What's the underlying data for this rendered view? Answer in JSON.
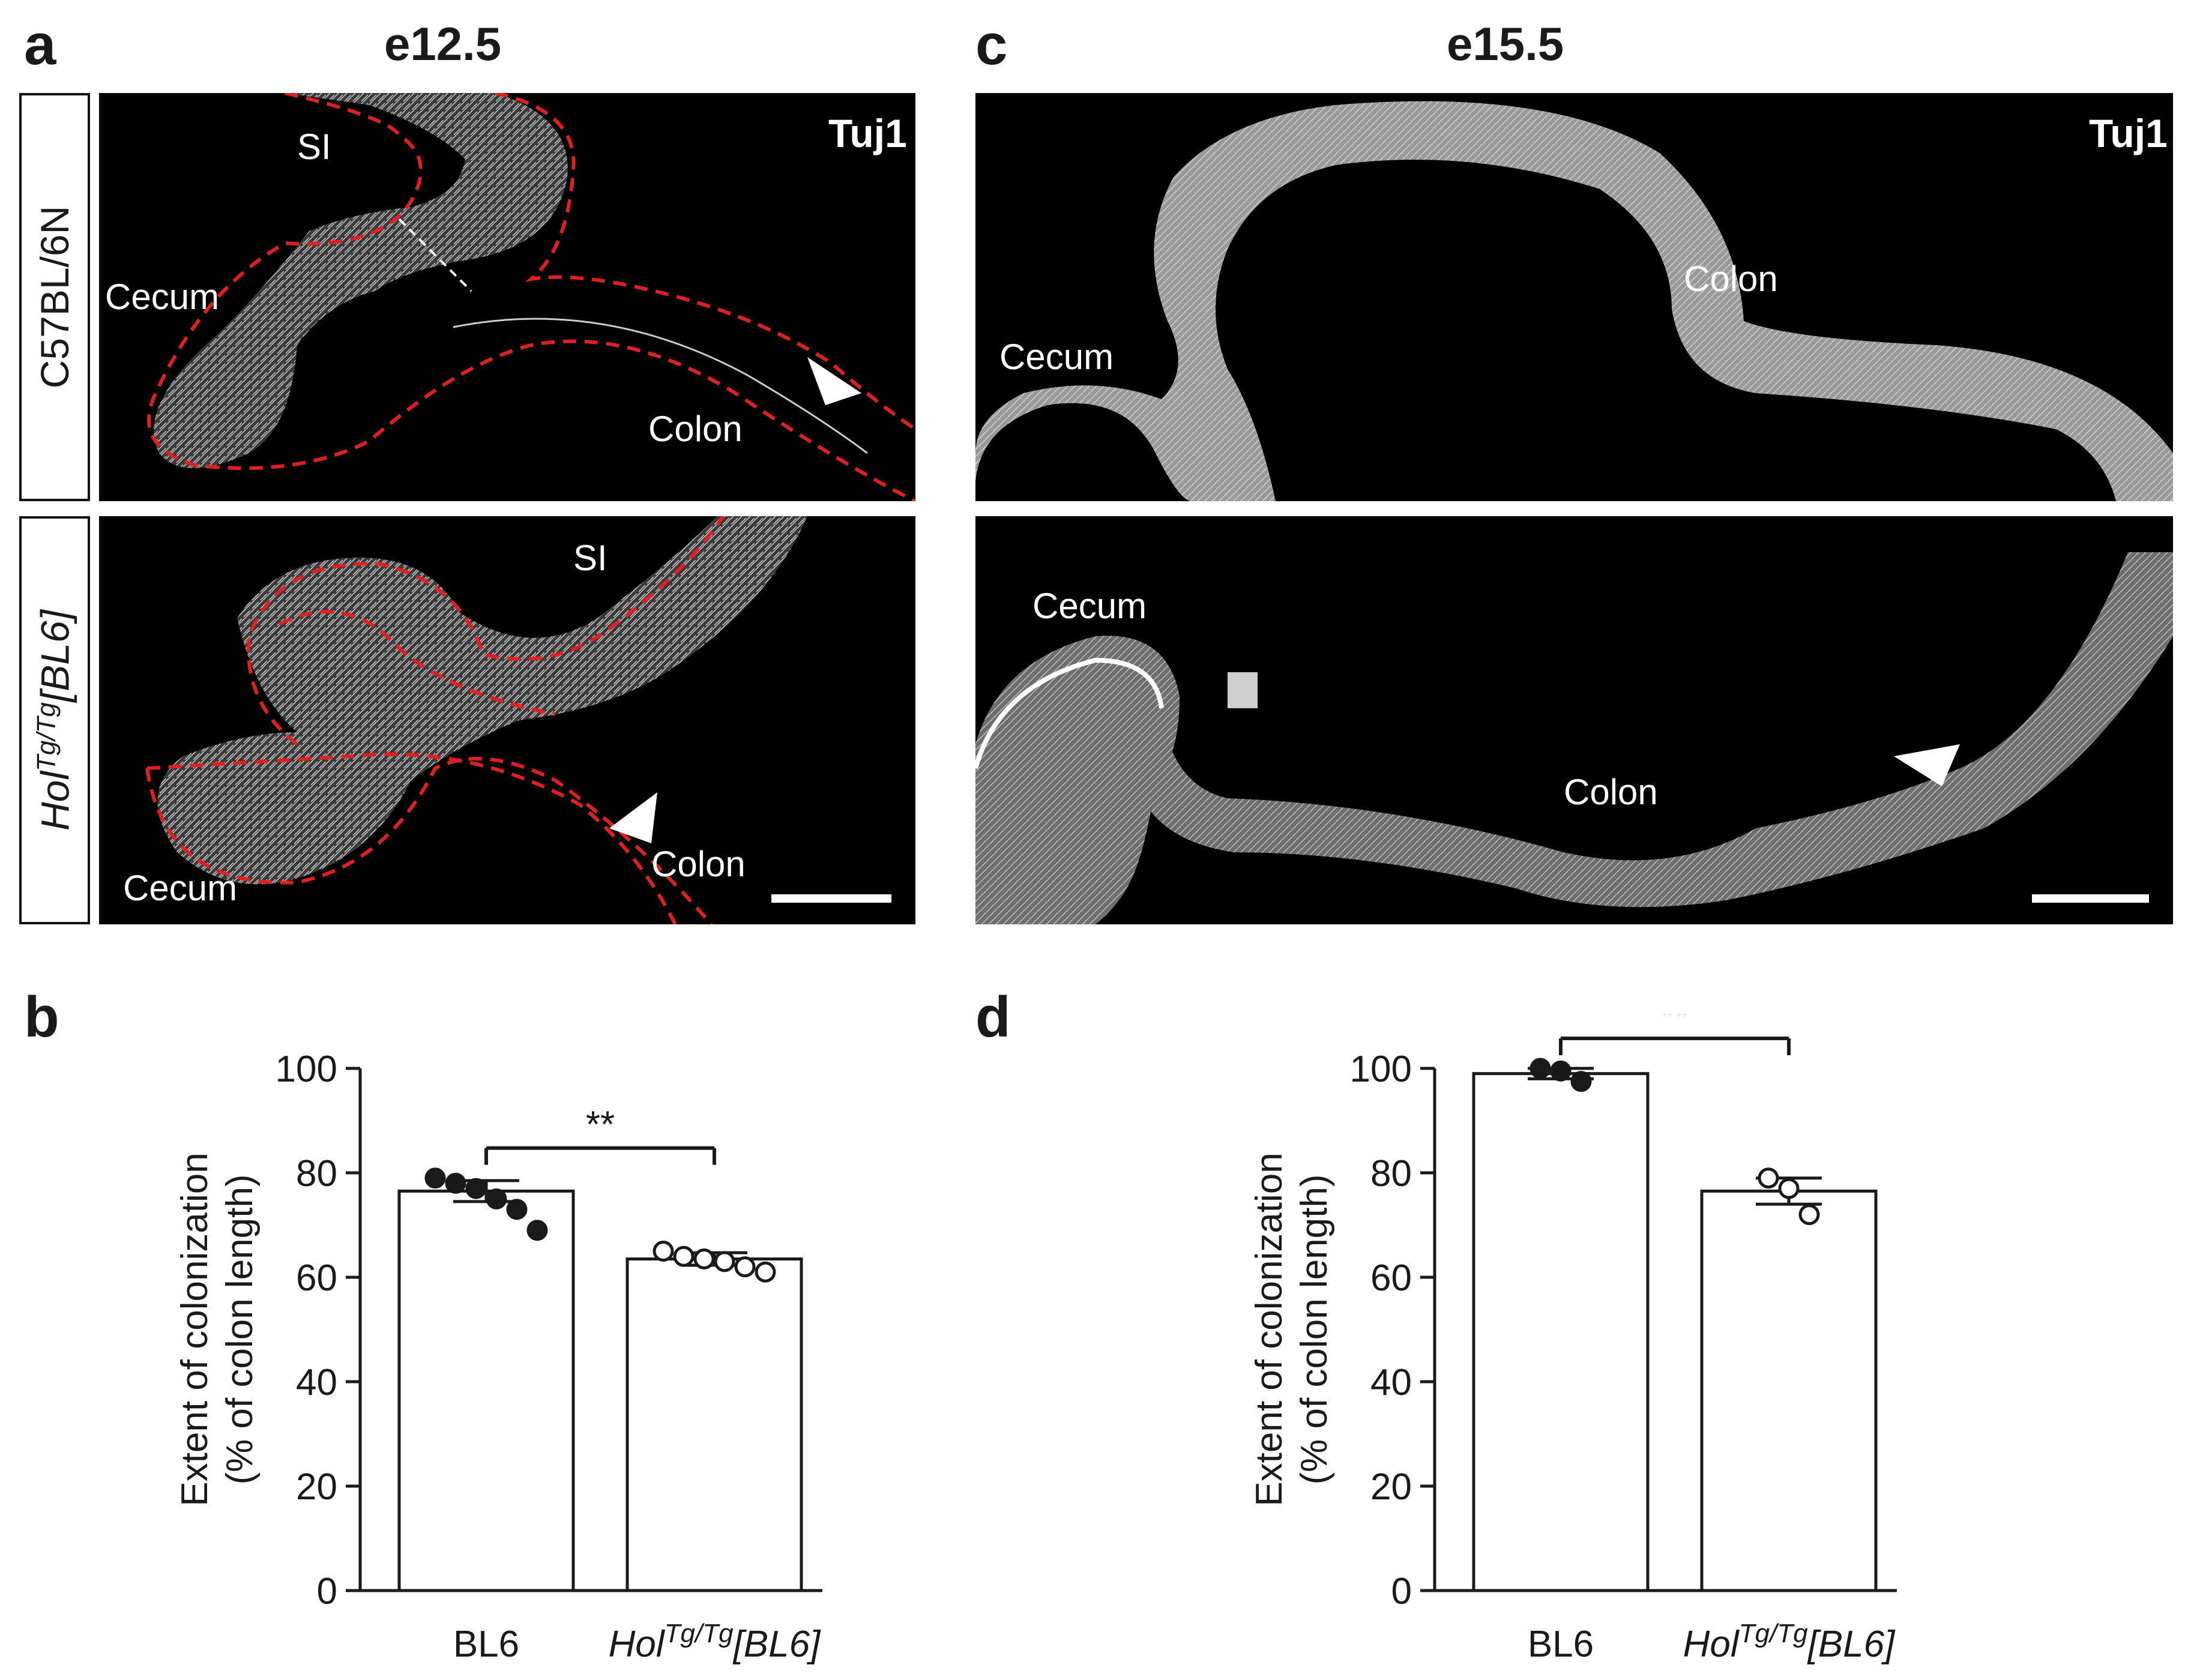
{
  "figure": {
    "panels": {
      "a": {
        "letter": "a",
        "stage": "e12.5",
        "marker": "Tuj1"
      },
      "b": {
        "letter": "b"
      },
      "c": {
        "letter": "c",
        "stage": "e15.5",
        "marker": "Tuj1"
      },
      "d": {
        "letter": "d"
      }
    },
    "row_labels": {
      "wt": "C57BL/6N",
      "mut_main": "Hol",
      "mut_sup": "Tg/Tg",
      "mut_tail": "[BL6]"
    },
    "micro_labels": {
      "si": "SI",
      "cecum": "Cecum",
      "colon": "Colon"
    }
  },
  "chart_data": [
    {
      "panel": "b",
      "type": "bar",
      "categories": [
        "BL6",
        "HolTg/Tg[BL6]"
      ],
      "category_display": [
        {
          "main": "BL6",
          "sup": "",
          "tail": ""
        },
        {
          "main": "Hol",
          "sup": "Tg/Tg",
          "tail": "[BL6]"
        }
      ],
      "values": [
        76.5,
        63.5
      ],
      "sem": [
        2.0,
        1.2
      ],
      "points": [
        [
          79,
          78,
          77,
          75,
          73,
          69
        ],
        [
          65,
          64,
          63.5,
          63,
          62,
          61
        ]
      ],
      "point_fill": [
        "#1a1a1a",
        "#ffffff"
      ],
      "ylabel": "Extent of colonization",
      "ylabel2": "(% of colon length)",
      "ylim": [
        0,
        100
      ],
      "yticks": [
        0,
        20,
        40,
        60,
        80,
        100
      ],
      "significance": "**"
    },
    {
      "panel": "d",
      "type": "bar",
      "categories": [
        "BL6",
        "HolTg/Tg[BL6]"
      ],
      "category_display": [
        {
          "main": "BL6",
          "sup": "",
          "tail": ""
        },
        {
          "main": "Hol",
          "sup": "Tg/Tg",
          "tail": "[BL6]"
        }
      ],
      "values": [
        99,
        76.5
      ],
      "sem": [
        1.0,
        2.5
      ],
      "points": [
        [
          100,
          99.5,
          97.5
        ],
        [
          79,
          77,
          72
        ]
      ],
      "point_fill": [
        "#1a1a1a",
        "#ffffff"
      ],
      "ylabel": "Extent of colonization",
      "ylabel2": "(% of colon length)",
      "ylim": [
        0,
        100
      ],
      "yticks": [
        0,
        20,
        40,
        60,
        80,
        100
      ],
      "significance": "**"
    }
  ]
}
